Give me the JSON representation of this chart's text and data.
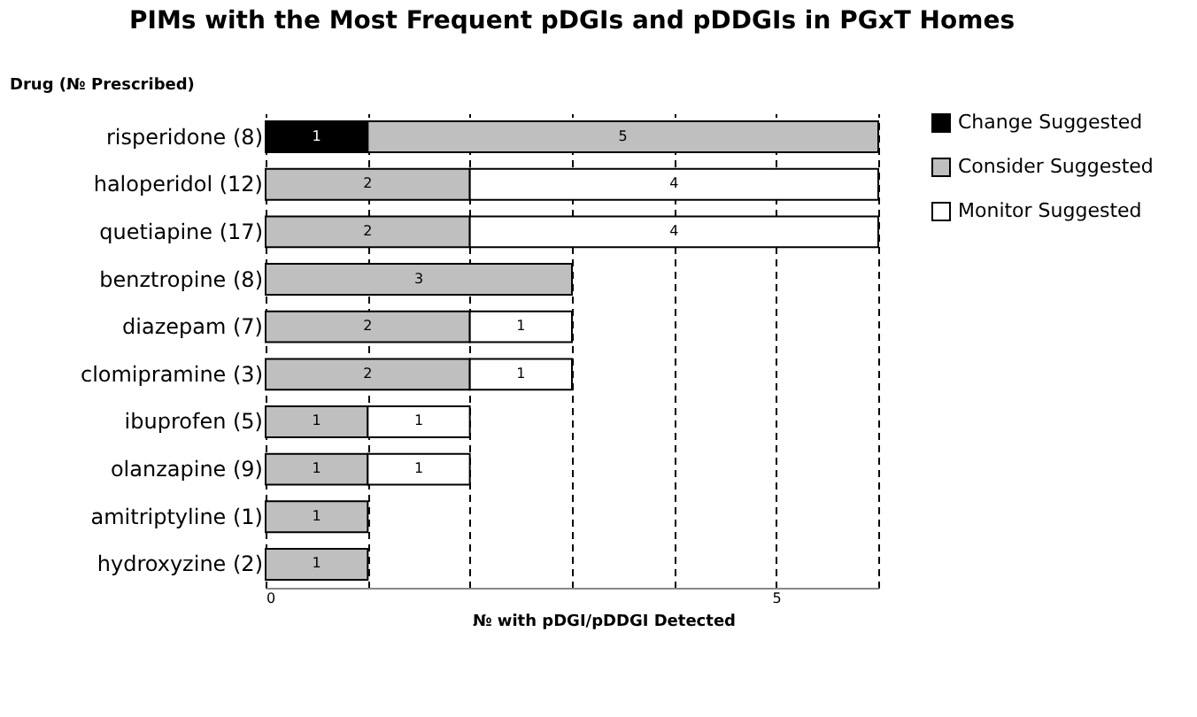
{
  "chart_data": {
    "type": "bar",
    "orientation": "horizontal",
    "stacked": true,
    "title": "PIMs with the Most Frequent pDGIs and pDDGIs in PGxT Homes",
    "ylabel": "Drug (№ Prescribed)",
    "xlabel": "№ with pDGI/pDDGI Detected",
    "categories": [
      "risperidone (8)",
      "haloperidol (12)",
      "quetiapine (17)",
      "benztropine (8)",
      "diazepam (7)",
      "clomipramine (3)",
      "ibuprofen (5)",
      "olanzapine (9)",
      "amitriptyline (1)",
      "hydroxyzine (2)"
    ],
    "series": [
      {
        "name": "Change Suggested",
        "color": "#000000",
        "values": [
          1,
          null,
          null,
          null,
          null,
          null,
          null,
          null,
          null,
          null
        ]
      },
      {
        "name": "Consider Suggested",
        "color": "#bfbfbf",
        "values": [
          5,
          2,
          2,
          3,
          2,
          2,
          1,
          1,
          1,
          1
        ]
      },
      {
        "name": "Monitor Suggested",
        "color": "#ffffff",
        "values": [
          null,
          4,
          4,
          null,
          1,
          1,
          1,
          1,
          null,
          null
        ]
      }
    ],
    "xlim": [
      0,
      6
    ],
    "xticks": [
      0,
      {
        "value": 1,
        "label": null
      },
      {
        "value": 2,
        "label": null
      },
      {
        "value": 3,
        "label": null
      },
      {
        "value": 4,
        "label": null
      },
      5,
      {
        "value": 6,
        "label": null
      }
    ],
    "grid": "x",
    "legend": "right",
    "data_labels": true
  }
}
